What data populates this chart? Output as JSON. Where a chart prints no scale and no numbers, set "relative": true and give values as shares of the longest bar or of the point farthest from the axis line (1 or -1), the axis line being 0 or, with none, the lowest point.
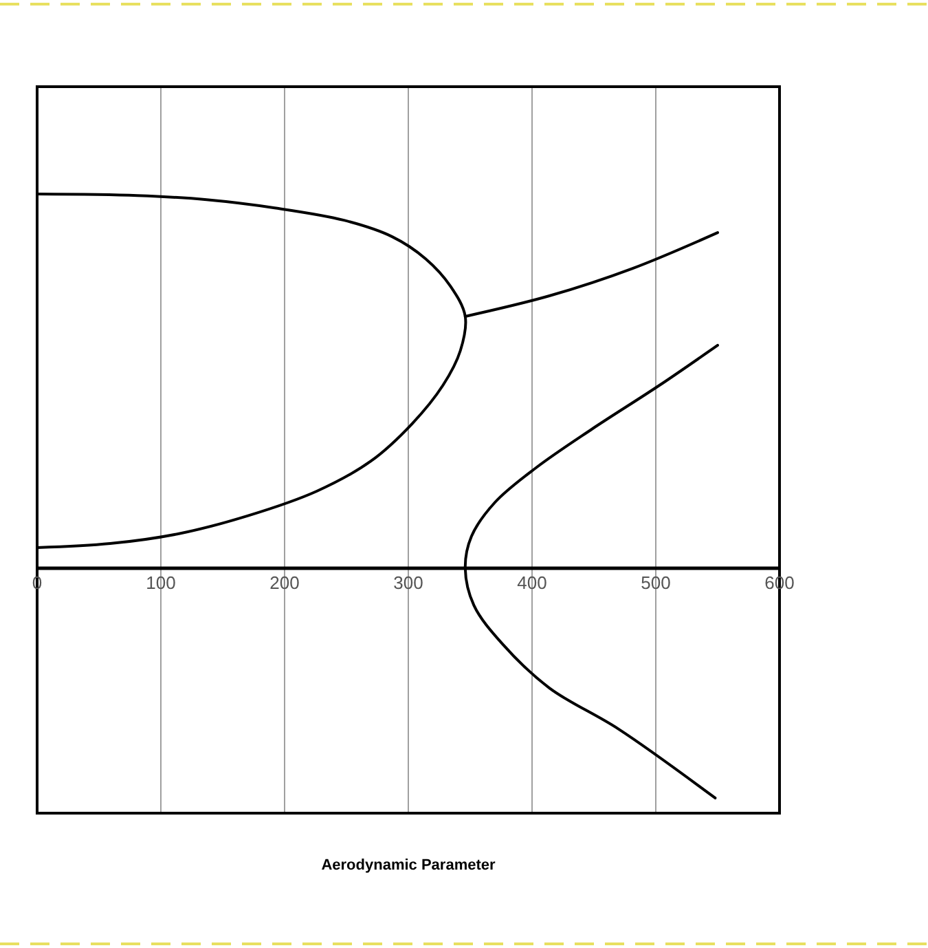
{
  "chart_data": {
    "type": "line",
    "xlabel": "Aerodynamic Parameter",
    "relative": true,
    "xlim": [
      0,
      600
    ],
    "xticks": [
      0,
      100,
      200,
      300,
      400,
      500,
      600
    ],
    "grid": "x",
    "line_style": "solid",
    "marker": "none",
    "series": [
      {
        "color": "#000000",
        "x": [
          0,
          81,
          137,
          192,
          248,
          287,
          314,
          334,
          346,
          342,
          328,
          303,
          270,
          226,
          170,
          114,
          59,
          0
        ],
        "values": [
          1.0,
          0.996,
          0.985,
          0.963,
          0.93,
          0.886,
          0.827,
          0.754,
          0.673,
          0.581,
          0.489,
          0.386,
          0.287,
          0.206,
          0.14,
          0.092,
          0.066,
          0.055
        ]
      },
      {
        "color": "#000000",
        "x": [
          346,
          414,
          481,
          550
        ],
        "values": [
          0.673,
          0.728,
          0.801,
          0.897
        ]
      },
      {
        "color": "#000000",
        "x": [
          550,
          503,
          448,
          403,
          370,
          351,
          346,
          353,
          376,
          414,
          470,
          548
        ],
        "values": [
          0.596,
          0.489,
          0.371,
          0.268,
          0.176,
          0.085,
          0,
          -0.099,
          -0.202,
          -0.32,
          -0.43,
          -0.614
        ]
      }
    ]
  }
}
